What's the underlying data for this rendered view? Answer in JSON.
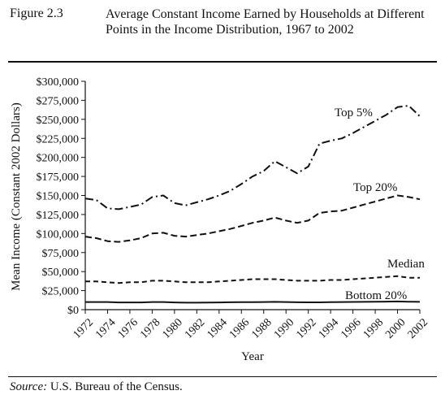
{
  "figure": {
    "label": "Figure 2.3",
    "title": "Average Constant Income Earned by Households at Different Points in the Income Distribution, 1967 to 2002"
  },
  "source": {
    "prefix": "Source:",
    "text": " U.S. Bureau of the Census."
  },
  "chart_data": {
    "type": "line",
    "title": "",
    "xlabel": "Year",
    "ylabel": "Mean Income (Constant 2002 Dollars)",
    "xlim": [
      1972,
      2002
    ],
    "ylim": [
      0,
      300000
    ],
    "y_ticks": [
      0,
      25000,
      50000,
      75000,
      100000,
      125000,
      150000,
      175000,
      200000,
      225000,
      250000,
      275000,
      300000
    ],
    "y_tick_labels": [
      "$0",
      "$25,000",
      "$50,000",
      "$75,000",
      "$100,000",
      "$125,000",
      "$150,000",
      "$175,000",
      "$200,000",
      "$225,000",
      "$250,000",
      "$275,000",
      "$300,000"
    ],
    "x_ticks": [
      1972,
      1974,
      1976,
      1978,
      1980,
      1982,
      1984,
      1986,
      1988,
      1990,
      1992,
      1994,
      1996,
      1998,
      2000,
      2002
    ],
    "x_tick_labels": [
      "1972",
      "1974",
      "1976",
      "1978",
      "1980",
      "1982",
      "1984",
      "1986",
      "1988",
      "1990",
      "1992",
      "1994",
      "1996",
      "1998",
      "2000",
      "2002"
    ],
    "grid": false,
    "legend": "inline labels",
    "x": [
      1972,
      1973,
      1974,
      1975,
      1976,
      1977,
      1978,
      1979,
      1980,
      1981,
      1982,
      1983,
      1984,
      1985,
      1986,
      1987,
      1988,
      1989,
      1990,
      1991,
      1992,
      1993,
      1994,
      1995,
      1996,
      1997,
      1998,
      1999,
      2000,
      2001,
      2002
    ],
    "series": [
      {
        "name": "Top 5%",
        "dash": "dashdot",
        "values": [
          146000,
          144000,
          133000,
          132000,
          135000,
          138000,
          148000,
          150000,
          140000,
          137000,
          141000,
          145000,
          150000,
          156000,
          165000,
          175000,
          182000,
          195000,
          187000,
          179000,
          188000,
          218000,
          222000,
          225000,
          232000,
          240000,
          248000,
          256000,
          266000,
          268000,
          254000
        ]
      },
      {
        "name": "Top 20%",
        "dash": "dashed",
        "values": [
          96000,
          94000,
          90000,
          89000,
          91000,
          94000,
          100000,
          101000,
          97000,
          96000,
          98000,
          100000,
          103000,
          106000,
          110000,
          114000,
          117000,
          121000,
          117000,
          114000,
          117000,
          127000,
          129000,
          130000,
          134000,
          138000,
          142000,
          146000,
          150000,
          148000,
          145000
        ]
      },
      {
        "name": "Median",
        "dash": "dashed-short",
        "values": [
          37000,
          37000,
          36000,
          35000,
          36000,
          36000,
          38000,
          38000,
          37000,
          36000,
          36000,
          36000,
          37000,
          38000,
          39000,
          40000,
          40000,
          40000,
          39000,
          38000,
          38000,
          38000,
          39000,
          39000,
          40000,
          41000,
          42000,
          43000,
          44000,
          42000,
          42000
        ]
      },
      {
        "name": "Bottom 20%",
        "dash": "solid",
        "values": [
          10000,
          10000,
          10000,
          9500,
          9500,
          9500,
          10000,
          10000,
          9500,
          9200,
          9200,
          9300,
          9500,
          9700,
          9800,
          9900,
          10000,
          10200,
          10000,
          9700,
          9600,
          9600,
          9800,
          10000,
          10100,
          10200,
          10400,
          10600,
          10800,
          10500,
          10300
        ]
      }
    ],
    "series_labels": [
      "Top 5%",
      "Top 20%",
      "Median",
      "Bottom 20%"
    ]
  }
}
